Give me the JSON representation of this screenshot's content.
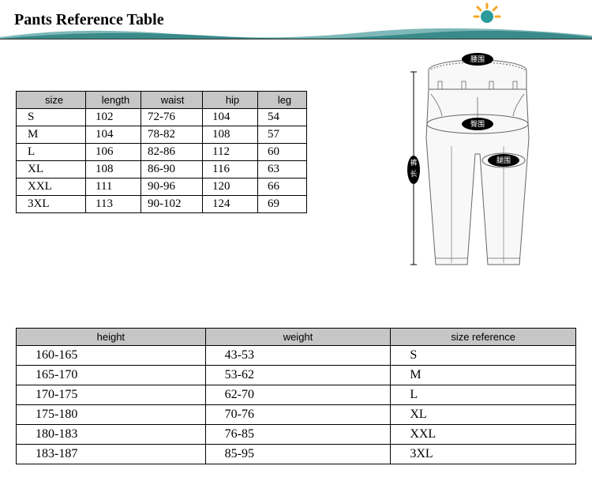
{
  "header": {
    "title": "Pants Reference Table",
    "wave_color": "#3a8a8a",
    "wave_light": "#7fb8b8",
    "sun_outer": "#f5a623",
    "sun_inner": "#2a9a9a"
  },
  "size_table": {
    "columns": [
      "size",
      "length",
      "waist",
      "hip",
      "leg"
    ],
    "rows": [
      [
        "S",
        "102",
        "72-76",
        "104",
        "54"
      ],
      [
        "M",
        "104",
        "78-82",
        "108",
        "57"
      ],
      [
        "L",
        "106",
        "82-86",
        "112",
        "60"
      ],
      [
        "XL",
        "108",
        "86-90",
        "116",
        "63"
      ],
      [
        "XXL",
        "111",
        "90-96",
        "120",
        "66"
      ],
      [
        "3XL",
        "113",
        "90-102",
        "124",
        "69"
      ]
    ]
  },
  "ref_table": {
    "columns": [
      "height",
      "weight",
      "size reference"
    ],
    "rows": [
      [
        "160-165",
        "43-53",
        "S"
      ],
      [
        "165-170",
        "53-62",
        "M"
      ],
      [
        "170-175",
        "62-70",
        "L"
      ],
      [
        "175-180",
        "70-76",
        "XL"
      ],
      [
        "180-183",
        "76-85",
        "XXL"
      ],
      [
        "183-187",
        "85-95",
        "3XL"
      ]
    ]
  },
  "diagram": {
    "label_waist": "腰围",
    "label_hip": "臀围",
    "label_thigh": "腿围",
    "label_length": "裤长",
    "stroke": "#666666",
    "fill": "#f8f8f8",
    "badge_bg": "#000000",
    "badge_text": "#ffffff"
  }
}
